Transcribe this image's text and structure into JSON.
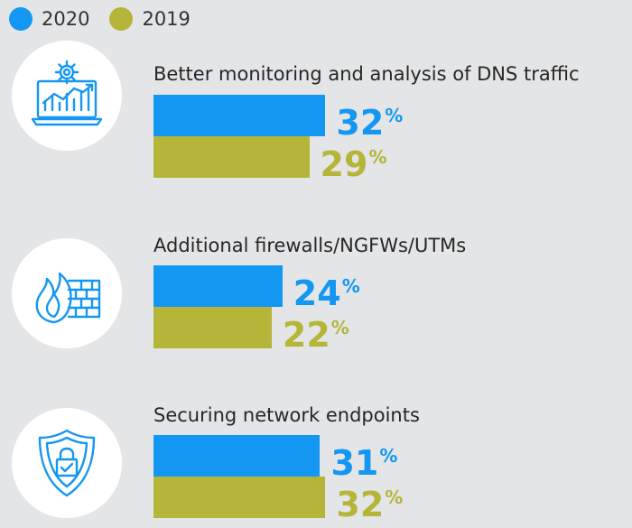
{
  "legend": [
    {
      "label": "2020",
      "color": "#1497f2"
    },
    {
      "label": "2019",
      "color": "#b5b53a"
    }
  ],
  "chart_data": {
    "type": "bar",
    "orientation": "horizontal",
    "unit": "%",
    "categories": [
      "Better monitoring and analysis of DNS traffic",
      "Additional firewalls/NGFWs/UTMs",
      "Securing network endpoints"
    ],
    "series": [
      {
        "name": "2020",
        "values": [
          32,
          24,
          31
        ],
        "color": "#1497f2"
      },
      {
        "name": "2019",
        "values": [
          29,
          22,
          32
        ],
        "color": "#b5b53a"
      }
    ],
    "icons": [
      "monitoring-chart-icon",
      "firewall-flame-icon",
      "shield-lock-icon"
    ]
  }
}
